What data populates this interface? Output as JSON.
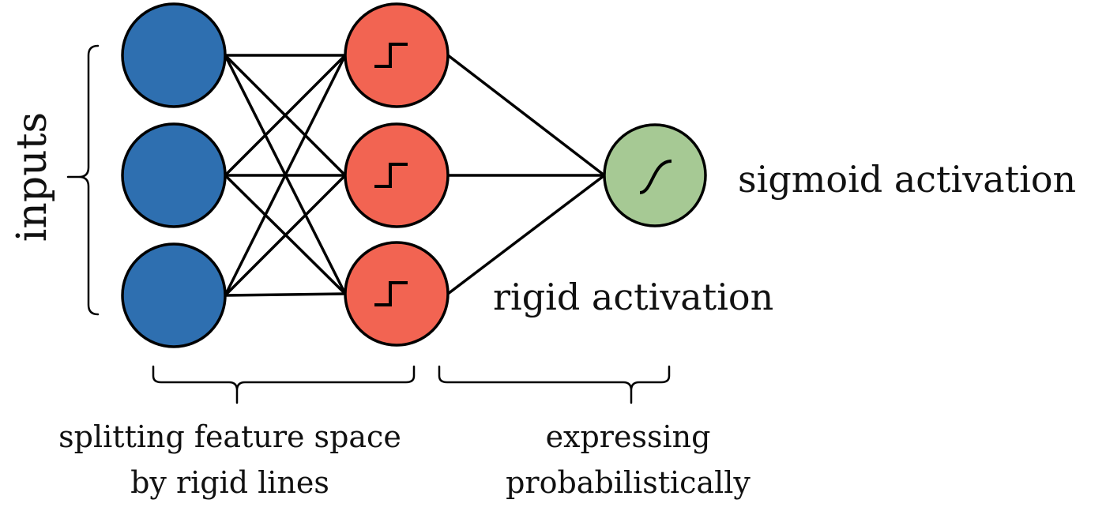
{
  "labels": {
    "inputs": "inputs",
    "sigmoid_activation": "sigmoid activation",
    "rigid_activation": "rigid activation",
    "hidden_brace_line1": "splitting feature space",
    "hidden_brace_line2": "by rigid lines",
    "output_brace_line1": "expressing",
    "output_brace_line2": "probabilistically"
  },
  "layers": [
    {
      "name": "input",
      "node_count": 3,
      "color": "#2E6FB0",
      "activation": "none"
    },
    {
      "name": "hidden",
      "node_count": 3,
      "color": "#F26452",
      "activation": "step"
    },
    {
      "name": "output",
      "node_count": 1,
      "color": "#A6C994",
      "activation": "sigmoid"
    }
  ]
}
